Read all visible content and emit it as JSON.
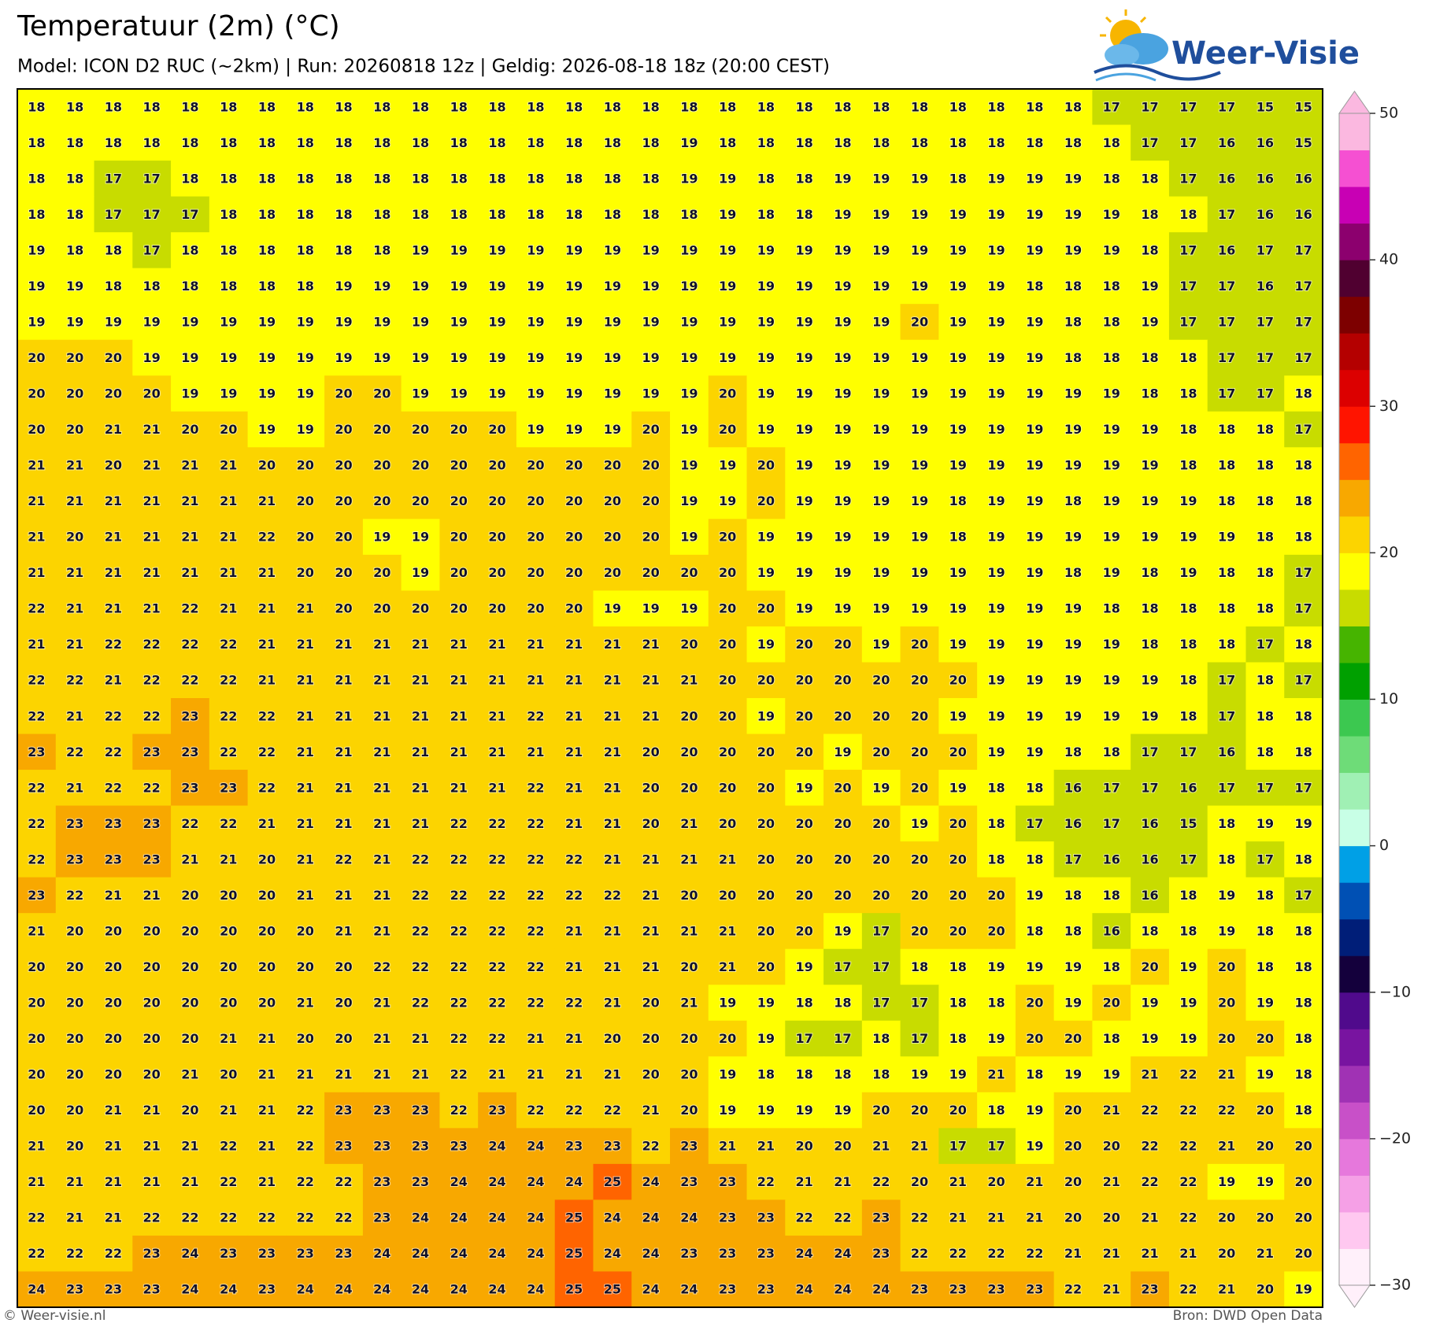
{
  "header": {
    "title": "Temperatuur (2m) (°C)",
    "subtitle": "Model: ICON D2 RUC (~2km)  |  Run: 20260818 12z  |  Geldig: 2026-08-18 18z (20:00 CEST)",
    "logo": "Weer-Visie"
  },
  "footer": {
    "left": "© Weer-visie.nl",
    "right": "Bron: DWD Open Data"
  },
  "grid": {
    "rows": [
      [
        18,
        18,
        18,
        18,
        18,
        18,
        18,
        18,
        18,
        18,
        18,
        18,
        18,
        18,
        18,
        18,
        18,
        18,
        18,
        18,
        18,
        18,
        18,
        18,
        18,
        18,
        18,
        18,
        17,
        17,
        17,
        17,
        15,
        15
      ],
      [
        18,
        18,
        18,
        18,
        18,
        18,
        18,
        18,
        18,
        18,
        18,
        18,
        18,
        18,
        18,
        18,
        18,
        19,
        18,
        18,
        18,
        18,
        18,
        18,
        18,
        18,
        18,
        18,
        18,
        17,
        17,
        16,
        16,
        15
      ],
      [
        18,
        18,
        17,
        17,
        18,
        18,
        18,
        18,
        18,
        18,
        18,
        18,
        18,
        18,
        18,
        18,
        18,
        19,
        19,
        18,
        18,
        19,
        19,
        19,
        18,
        19,
        19,
        19,
        18,
        18,
        17,
        16,
        16,
        16
      ],
      [
        18,
        18,
        17,
        17,
        17,
        18,
        18,
        18,
        18,
        18,
        18,
        18,
        18,
        18,
        18,
        18,
        18,
        18,
        19,
        18,
        18,
        19,
        19,
        19,
        19,
        19,
        19,
        19,
        19,
        18,
        18,
        17,
        16,
        16
      ],
      [
        19,
        18,
        18,
        17,
        18,
        18,
        18,
        18,
        18,
        18,
        19,
        19,
        19,
        19,
        19,
        19,
        19,
        19,
        19,
        19,
        19,
        19,
        19,
        19,
        19,
        19,
        19,
        19,
        19,
        18,
        17,
        16,
        17,
        17
      ],
      [
        19,
        19,
        18,
        18,
        18,
        18,
        18,
        18,
        19,
        19,
        19,
        19,
        19,
        19,
        19,
        19,
        19,
        19,
        19,
        19,
        19,
        19,
        19,
        19,
        19,
        19,
        18,
        18,
        18,
        19,
        17,
        17,
        16,
        17
      ],
      [
        19,
        19,
        19,
        19,
        19,
        19,
        19,
        19,
        19,
        19,
        19,
        19,
        19,
        19,
        19,
        19,
        19,
        19,
        19,
        19,
        19,
        19,
        19,
        20,
        19,
        19,
        19,
        18,
        18,
        19,
        17,
        17,
        17,
        17
      ],
      [
        20,
        20,
        20,
        19,
        19,
        19,
        19,
        19,
        19,
        19,
        19,
        19,
        19,
        19,
        19,
        19,
        19,
        19,
        19,
        19,
        19,
        19,
        19,
        19,
        19,
        19,
        19,
        18,
        18,
        18,
        18,
        17,
        17,
        17
      ],
      [
        20,
        20,
        20,
        20,
        19,
        19,
        19,
        19,
        20,
        20,
        19,
        19,
        19,
        19,
        19,
        19,
        19,
        19,
        20,
        19,
        19,
        19,
        19,
        19,
        19,
        19,
        19,
        19,
        19,
        18,
        18,
        17,
        17,
        18
      ],
      [
        20,
        20,
        21,
        21,
        20,
        20,
        19,
        19,
        20,
        20,
        20,
        20,
        20,
        19,
        19,
        19,
        20,
        19,
        20,
        19,
        19,
        19,
        19,
        19,
        19,
        19,
        19,
        19,
        19,
        19,
        18,
        18,
        18,
        17
      ],
      [
        21,
        21,
        20,
        21,
        21,
        21,
        20,
        20,
        20,
        20,
        20,
        20,
        20,
        20,
        20,
        20,
        20,
        19,
        19,
        20,
        19,
        19,
        19,
        19,
        19,
        19,
        19,
        19,
        19,
        19,
        18,
        18,
        18,
        18
      ],
      [
        21,
        21,
        21,
        21,
        21,
        21,
        21,
        20,
        20,
        20,
        20,
        20,
        20,
        20,
        20,
        20,
        20,
        19,
        19,
        20,
        19,
        19,
        19,
        19,
        18,
        19,
        19,
        18,
        19,
        19,
        19,
        18,
        18,
        18
      ],
      [
        21,
        20,
        21,
        21,
        21,
        21,
        22,
        20,
        20,
        19,
        19,
        20,
        20,
        20,
        20,
        20,
        20,
        19,
        20,
        19,
        19,
        19,
        19,
        19,
        18,
        19,
        19,
        19,
        19,
        19,
        19,
        19,
        18,
        18
      ],
      [
        21,
        21,
        21,
        21,
        21,
        21,
        21,
        20,
        20,
        20,
        19,
        20,
        20,
        20,
        20,
        20,
        20,
        20,
        20,
        19,
        19,
        19,
        19,
        19,
        19,
        19,
        19,
        18,
        19,
        18,
        19,
        18,
        18,
        17
      ],
      [
        22,
        21,
        21,
        21,
        22,
        21,
        21,
        21,
        20,
        20,
        20,
        20,
        20,
        20,
        20,
        19,
        19,
        19,
        20,
        20,
        19,
        19,
        19,
        19,
        19,
        19,
        19,
        19,
        18,
        18,
        18,
        18,
        18,
        17
      ],
      [
        21,
        21,
        22,
        22,
        22,
        22,
        21,
        21,
        21,
        21,
        21,
        21,
        21,
        21,
        21,
        21,
        21,
        20,
        20,
        19,
        20,
        20,
        19,
        20,
        19,
        19,
        19,
        19,
        19,
        18,
        18,
        18,
        17,
        18
      ],
      [
        22,
        22,
        21,
        22,
        22,
        22,
        21,
        21,
        21,
        21,
        21,
        21,
        21,
        21,
        21,
        21,
        21,
        21,
        20,
        20,
        20,
        20,
        20,
        20,
        20,
        19,
        19,
        19,
        19,
        19,
        18,
        17,
        18,
        17
      ],
      [
        22,
        21,
        22,
        22,
        23,
        22,
        22,
        21,
        21,
        21,
        21,
        21,
        21,
        22,
        21,
        21,
        21,
        20,
        20,
        19,
        20,
        20,
        20,
        20,
        19,
        19,
        19,
        19,
        19,
        19,
        18,
        17,
        18,
        18
      ],
      [
        23,
        22,
        22,
        23,
        23,
        22,
        22,
        21,
        21,
        21,
        21,
        21,
        21,
        21,
        21,
        21,
        20,
        20,
        20,
        20,
        20,
        19,
        20,
        20,
        20,
        19,
        19,
        18,
        18,
        17,
        17,
        16,
        18,
        18
      ],
      [
        22,
        21,
        22,
        22,
        23,
        23,
        22,
        21,
        21,
        21,
        21,
        21,
        21,
        22,
        21,
        21,
        20,
        20,
        20,
        20,
        19,
        20,
        19,
        20,
        19,
        18,
        18,
        16,
        17,
        17,
        16,
        17,
        17,
        17
      ],
      [
        22,
        23,
        23,
        23,
        22,
        22,
        21,
        21,
        21,
        21,
        21,
        22,
        22,
        22,
        21,
        21,
        20,
        21,
        20,
        20,
        20,
        20,
        20,
        19,
        20,
        18,
        17,
        16,
        17,
        16,
        15,
        18,
        19,
        19
      ],
      [
        22,
        23,
        23,
        23,
        21,
        21,
        20,
        21,
        22,
        21,
        22,
        22,
        22,
        22,
        22,
        21,
        21,
        21,
        21,
        20,
        20,
        20,
        20,
        20,
        20,
        18,
        18,
        17,
        16,
        16,
        17,
        18,
        17,
        18
      ],
      [
        23,
        22,
        21,
        21,
        20,
        20,
        20,
        21,
        21,
        21,
        22,
        22,
        22,
        22,
        22,
        22,
        21,
        20,
        20,
        20,
        20,
        20,
        20,
        20,
        20,
        20,
        19,
        18,
        18,
        16,
        18,
        19,
        18,
        17
      ],
      [
        21,
        20,
        20,
        20,
        20,
        20,
        20,
        20,
        21,
        21,
        22,
        22,
        22,
        22,
        21,
        21,
        21,
        21,
        21,
        20,
        20,
        19,
        17,
        20,
        20,
        20,
        18,
        18,
        16,
        18,
        18,
        19,
        18,
        18
      ],
      [
        20,
        20,
        20,
        20,
        20,
        20,
        20,
        20,
        20,
        22,
        22,
        22,
        22,
        22,
        21,
        21,
        21,
        20,
        21,
        20,
        19,
        17,
        17,
        18,
        18,
        19,
        19,
        19,
        18,
        20,
        19,
        20,
        18,
        18
      ],
      [
        20,
        20,
        20,
        20,
        20,
        20,
        20,
        21,
        20,
        21,
        22,
        22,
        22,
        22,
        22,
        21,
        20,
        21,
        19,
        19,
        18,
        18,
        17,
        17,
        18,
        18,
        20,
        19,
        20,
        19,
        19,
        20,
        19,
        18
      ],
      [
        20,
        20,
        20,
        20,
        20,
        21,
        21,
        20,
        20,
        21,
        21,
        22,
        22,
        21,
        21,
        20,
        20,
        20,
        20,
        19,
        17,
        17,
        18,
        17,
        18,
        19,
        20,
        20,
        18,
        19,
        19,
        20,
        20,
        18
      ],
      [
        20,
        20,
        20,
        20,
        21,
        20,
        21,
        21,
        21,
        21,
        21,
        22,
        21,
        21,
        21,
        21,
        20,
        20,
        19,
        18,
        18,
        18,
        18,
        19,
        19,
        21,
        18,
        19,
        19,
        21,
        22,
        21,
        19,
        18
      ],
      [
        20,
        20,
        21,
        21,
        20,
        21,
        21,
        22,
        23,
        23,
        23,
        22,
        23,
        22,
        22,
        22,
        21,
        20,
        19,
        19,
        19,
        19,
        20,
        20,
        20,
        18,
        19,
        20,
        21,
        22,
        22,
        22,
        20,
        18
      ],
      [
        21,
        20,
        21,
        21,
        21,
        22,
        21,
        22,
        23,
        23,
        23,
        23,
        24,
        24,
        23,
        23,
        22,
        23,
        21,
        21,
        20,
        20,
        21,
        21,
        17,
        17,
        19,
        20,
        20,
        22,
        22,
        21,
        20,
        20
      ],
      [
        21,
        21,
        21,
        21,
        21,
        22,
        21,
        22,
        22,
        23,
        23,
        24,
        24,
        24,
        24,
        25,
        24,
        23,
        23,
        22,
        21,
        21,
        22,
        20,
        21,
        20,
        21,
        20,
        21,
        22,
        22,
        19,
        19,
        20
      ],
      [
        22,
        21,
        21,
        22,
        22,
        22,
        22,
        22,
        22,
        23,
        24,
        24,
        24,
        24,
        25,
        24,
        24,
        24,
        23,
        23,
        22,
        22,
        23,
        22,
        21,
        21,
        21,
        20,
        20,
        21,
        22,
        20,
        20,
        20
      ],
      [
        22,
        22,
        22,
        23,
        24,
        23,
        23,
        23,
        23,
        24,
        24,
        24,
        24,
        24,
        25,
        24,
        24,
        23,
        23,
        23,
        24,
        24,
        23,
        22,
        22,
        22,
        22,
        21,
        21,
        21,
        21,
        20,
        21,
        20
      ],
      [
        24,
        23,
        23,
        23,
        24,
        24,
        23,
        24,
        24,
        24,
        24,
        24,
        24,
        24,
        25,
        25,
        24,
        24,
        23,
        23,
        24,
        24,
        24,
        23,
        23,
        23,
        23,
        22,
        21,
        23,
        22,
        21,
        20,
        19
      ]
    ]
  },
  "colorbar": {
    "ticks": [
      {
        "value": -30,
        "label": "−30"
      },
      {
        "value": -20,
        "label": "−20"
      },
      {
        "value": -10,
        "label": "−10"
      },
      0,
      10,
      20,
      30,
      40,
      50
    ],
    "colors": [
      "#fff0fa",
      "#ffc8f0",
      "#f5a0e6",
      "#e678dc",
      "#c850c8",
      "#a032b4",
      "#7814a0",
      "#500a8c",
      "#14003c",
      "#001e78",
      "#0050b4",
      "#00a0e6",
      "#c8ffe6",
      "#a0f0b4",
      "#6edc78",
      "#3cc850",
      "#00a000",
      "#46b400",
      "#c8dc00",
      "#ffff00",
      "#fcd400",
      "#f8a800",
      "#ff6400",
      "#ff1400",
      "#dc0000",
      "#b40000",
      "#7d0000",
      "#500030",
      "#8c006e",
      "#c800b4",
      "#f550d2",
      "#fbb8e0"
    ]
  }
}
